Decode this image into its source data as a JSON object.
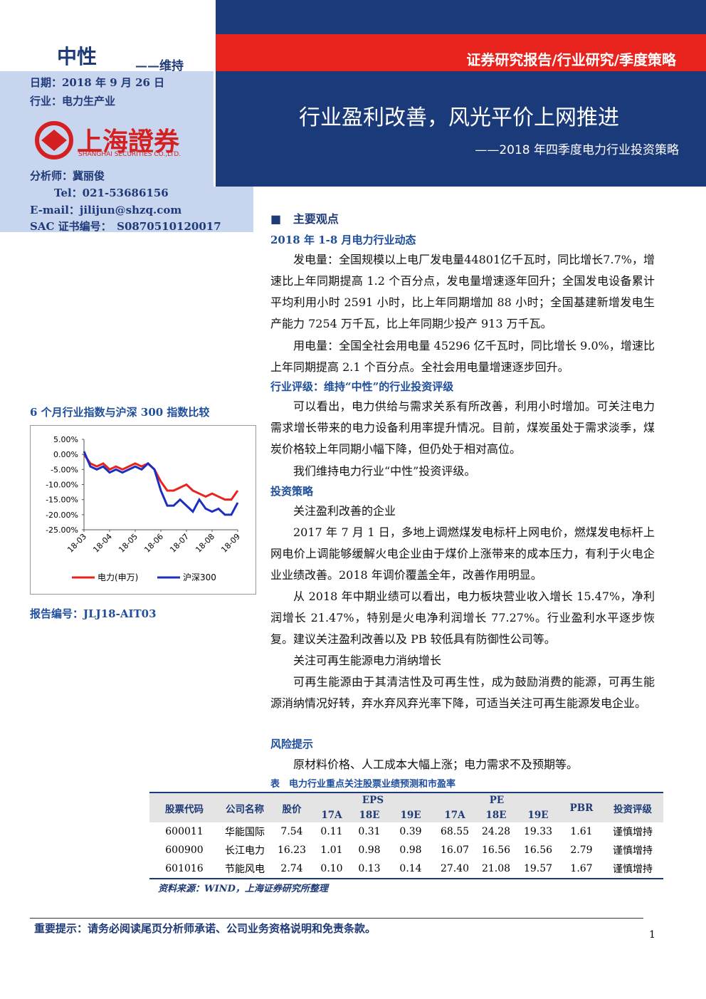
{
  "header": {
    "rating": "中性",
    "rating_note": "——维持",
    "report_type": "证券研究报告/行业研究/季度策略",
    "date": "日期：2018 年 9 月 26 日",
    "industry": "行业：电力生产业",
    "title": "行业盈利改善，风光平价上网推进",
    "subtitle": "——2018 年四季度电力行业投资策略",
    "logo_name": "上海證券",
    "logo_en": "SHANGHAI SECURITIES CO.,LTD."
  },
  "analyst": {
    "name": "分析师：冀丽俊",
    "tel": "Tel：021-53686156",
    "email": "E-mail：jilijun@shzq.com",
    "sac": "SAC 证书编号：　S0870510120017"
  },
  "chart_data": {
    "type": "line",
    "title": "6 个月行业指数与沪深 300 指数比较",
    "categories": [
      "18-03",
      null,
      null,
      null,
      "18-04",
      null,
      null,
      null,
      "18-05",
      null,
      null,
      null,
      "18-06",
      null,
      null,
      null,
      "18-07",
      null,
      null,
      null,
      "18-08",
      null,
      null,
      null,
      "18-09"
    ],
    "series": [
      {
        "name": "电力(申万)",
        "color": "#e8221c",
        "values": [
          0,
          -3,
          -4,
          -3,
          -5,
          -4,
          -5,
          -4,
          -3,
          -4,
          -3,
          -5,
          -9,
          -12,
          -12,
          -11,
          -10,
          -12,
          -13,
          -14,
          -13,
          -14,
          -15,
          -15,
          -12
        ]
      },
      {
        "name": "沪深300",
        "color": "#1c2fbf",
        "values": [
          1,
          -4,
          -5,
          -4,
          -6,
          -5,
          -6,
          -5,
          -4,
          -5,
          -3,
          -5,
          -12,
          -17,
          -17,
          -15,
          -17,
          -19,
          -15,
          -18,
          -19,
          -18,
          -20,
          -20,
          -16
        ]
      }
    ],
    "ylim": [
      -25,
      5
    ],
    "yticks": [
      {
        "value": 5,
        "label": "5.00%"
      },
      {
        "value": 0,
        "label": "0.00%"
      },
      {
        "value": -5,
        "label": "-5.00%"
      },
      {
        "value": -10,
        "label": "-10.00%"
      },
      {
        "value": -15,
        "label": "-15.00%"
      },
      {
        "value": -20,
        "label": "-20.00%"
      },
      {
        "value": -25,
        "label": "-25.00%"
      }
    ]
  },
  "report_no": "报告编号：JLJ18-AIT03",
  "body": {
    "heading": "主要观点",
    "subheadings": [
      "2018 年 1-8 月电力行业动态",
      "行业评级：维持“中性”的行业投资评级",
      "投资策略",
      "风险提示"
    ],
    "plain_lines": [
      "关注盈利改善的企业",
      "关注可再生能源电力消纳增长"
    ],
    "paragraphs": [
      "发电量：全国规模以上电厂发电量44801亿千瓦时，同比增长7.7%，增速比上年同期提高 1.2 个百分点，发电量增速逐年回升；全国发电设备累计平均利用小时 2591 小时，比上年同期增加 88 小时；全国基建新增发电生产能力 7254 万千瓦，比上年同期少投产 913 万千瓦。",
      "用电量：全国全社会用电量 45296 亿千瓦时，同比增长 9.0%，增速比上年同期提高 2.1 个百分点。全社会用电量增速逐步回升。",
      "可以看出，电力供给与需求关系有所改善，利用小时增加。可关注电力需求增长带来的电力设备利用率提升情况。目前，煤炭虽处于需求淡季，煤炭价格较上年同期小幅下降，但仍处于相对高位。",
      "我们维持电力行业“中性”投资评级。",
      "2017 年 7 月 1 日，多地上调燃煤发电标杆上网电价，燃煤发电标杆上网电价上调能够缓解火电企业由于煤价上涨带来的成本压力，有利于火电企业业绩改善。2018 年调价覆盖全年，改善作用明显。",
      "从 2018 年中期业绩可以看出，电力板块营业收入增长 15.47%，净利润增长 21.47%，特别是火电净利润增长 77.27%。行业盈利水平逐步恢复。建议关注盈利改善以及 PB 较低具有防御性公司等。",
      "可再生能源由于其清洁性及可再生性，成为鼓励消费的能源，可再生能源消纳情况好转，弃水弃风弃光率下降，可适当关注可再生能源发电企业。",
      "原材料价格、人工成本大幅上涨；电力需求不及预期等。"
    ]
  },
  "table": {
    "caption": "表　电力行业重点关注股票业绩预测和市盈率",
    "header_top": [
      "股票代码",
      "公司名称",
      "股价",
      "EPS",
      "PE",
      "PBR",
      "投资评级"
    ],
    "header_sub": [
      "17A",
      "18E",
      "19E",
      "17A",
      "18E",
      "19E"
    ],
    "rows": [
      [
        "600011",
        "华能国际",
        "7.54",
        "0.11",
        "0.31",
        "0.39",
        "68.55",
        "24.28",
        "19.33",
        "1.61",
        "谨慎增持"
      ],
      [
        "600900",
        "长江电力",
        "16.23",
        "1.01",
        "0.98",
        "0.98",
        "16.07",
        "16.56",
        "16.56",
        "2.79",
        "谨慎增持"
      ],
      [
        "601016",
        "节能风电",
        "2.74",
        "0.10",
        "0.13",
        "0.14",
        "27.40",
        "21.08",
        "19.57",
        "1.67",
        "谨慎增持"
      ]
    ],
    "source": "资料来源：WIND，上海证券研究所整理"
  },
  "footer": {
    "notice": "重要提示：请务必阅读尾页分析师承诺、公司业务资格说明和免责条款。",
    "page": "1"
  }
}
